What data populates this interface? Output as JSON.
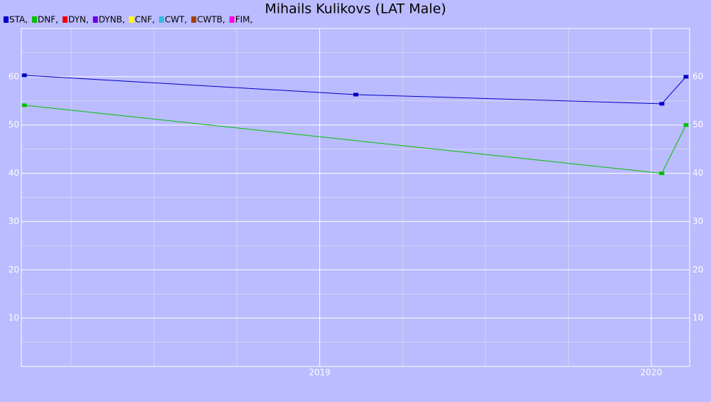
{
  "chart_data": {
    "type": "line",
    "title": "Mihails Kulikovs (LAT Male)",
    "xlim": [
      2018.1,
      2020.116
    ],
    "xticks": [
      2019,
      2020
    ],
    "minor_xticks": [
      2018.25,
      2018.5,
      2018.75,
      2019.25,
      2019.5,
      2019.75
    ],
    "ylim": [
      0,
      70
    ],
    "yticks": [
      10,
      20,
      30,
      40,
      50,
      60
    ],
    "minor_yticks": [
      5,
      15,
      25,
      35,
      45,
      55,
      65
    ],
    "grid": true,
    "series": [
      {
        "name": "STA,",
        "color": "#0000c8",
        "x": [
          2018.109,
          2019.109,
          2020.032,
          2020.105
        ],
        "values": [
          60.3,
          56.3,
          54.4,
          60.0
        ]
      },
      {
        "name": "DNF,",
        "color": "#00c000",
        "x": [
          2018.109,
          2020.032,
          2020.105
        ],
        "values": [
          54.1,
          40,
          50
        ]
      },
      {
        "name": "DYN,",
        "color": "#ee0000",
        "x": [],
        "values": []
      },
      {
        "name": "DYNB,",
        "color": "#6a00dd",
        "x": [],
        "values": []
      },
      {
        "name": "CNF,",
        "color": "#ffff00",
        "x": [],
        "values": []
      },
      {
        "name": "CWT,",
        "color": "#33bbdd",
        "x": [],
        "values": []
      },
      {
        "name": "CWTB,",
        "color": "#a04000",
        "x": [],
        "values": []
      },
      {
        "name": "FIM,",
        "color": "#ff00dd",
        "x": [],
        "values": []
      }
    ]
  }
}
